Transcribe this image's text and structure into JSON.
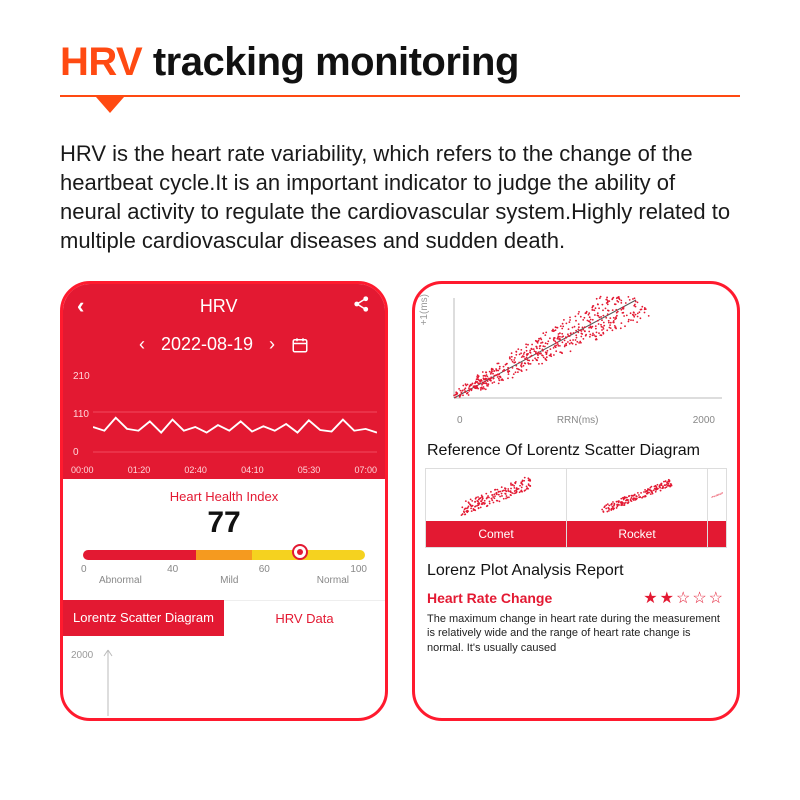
{
  "headline": {
    "accent": "HRV",
    "rest": " tracking monitoring",
    "accent_color": "#ff4a12"
  },
  "paragraph": "HRV is the heart rate variability, which refers to the change of the heartbeat cycle.It is an important indicator to judge the ability of neural activity to regulate the cardiovascular system.Highly related to multiple cardiovascular diseases and sudden death.",
  "phone1": {
    "title": "HRV",
    "date": "2022-08-19",
    "chart": {
      "type": "line",
      "yticks": [
        "210",
        "110",
        "0"
      ],
      "xticks": [
        "00:00",
        "01:20",
        "02:40",
        "04:10",
        "05:30",
        "07:00"
      ],
      "ylim": [
        0,
        210
      ],
      "line_color": "#ffffff",
      "bg_color": "#e31932",
      "values": [
        70,
        60,
        95,
        65,
        60,
        85,
        55,
        90,
        60,
        70,
        55,
        75,
        60,
        85,
        58,
        72,
        60,
        78,
        55,
        88,
        62,
        58,
        90,
        60,
        65,
        55
      ]
    },
    "health": {
      "title": "Heart Health Index",
      "value": "77",
      "scale": {
        "min": "0",
        "t1": "40",
        "t2": "60",
        "max": "100",
        "cat1": "Abnormal",
        "cat2": "Mild",
        "cat3": "Normal",
        "marker_pct": 77,
        "colors": [
          "#e31932",
          "#f59a1f",
          "#f5d21f"
        ]
      }
    },
    "tabs": {
      "left": "Lorentz Scatter Diagram",
      "right": "HRV Data"
    },
    "lorentz_ytick": "2000"
  },
  "phone2": {
    "yaxis": "+1(ms)",
    "xaxis_label": "RRN(ms)",
    "xaxis_ticks": [
      "0",
      "2000"
    ],
    "scatter": {
      "color": "#e31932",
      "diag_color": "#555555"
    },
    "ref_title": "Reference Of Lorentz Scatter Diagram",
    "thumbs": [
      {
        "label": "Comet"
      },
      {
        "label": "Rocket"
      }
    ],
    "report_title": "Lorenz Plot Analysis Report",
    "hrc_title": "Heart Rate Change",
    "stars_filled": 2,
    "stars_total": 5,
    "report_body": "The maximum change in heart rate during the measurement is relatively wide and the range of heart rate change is normal. It's usually caused"
  }
}
